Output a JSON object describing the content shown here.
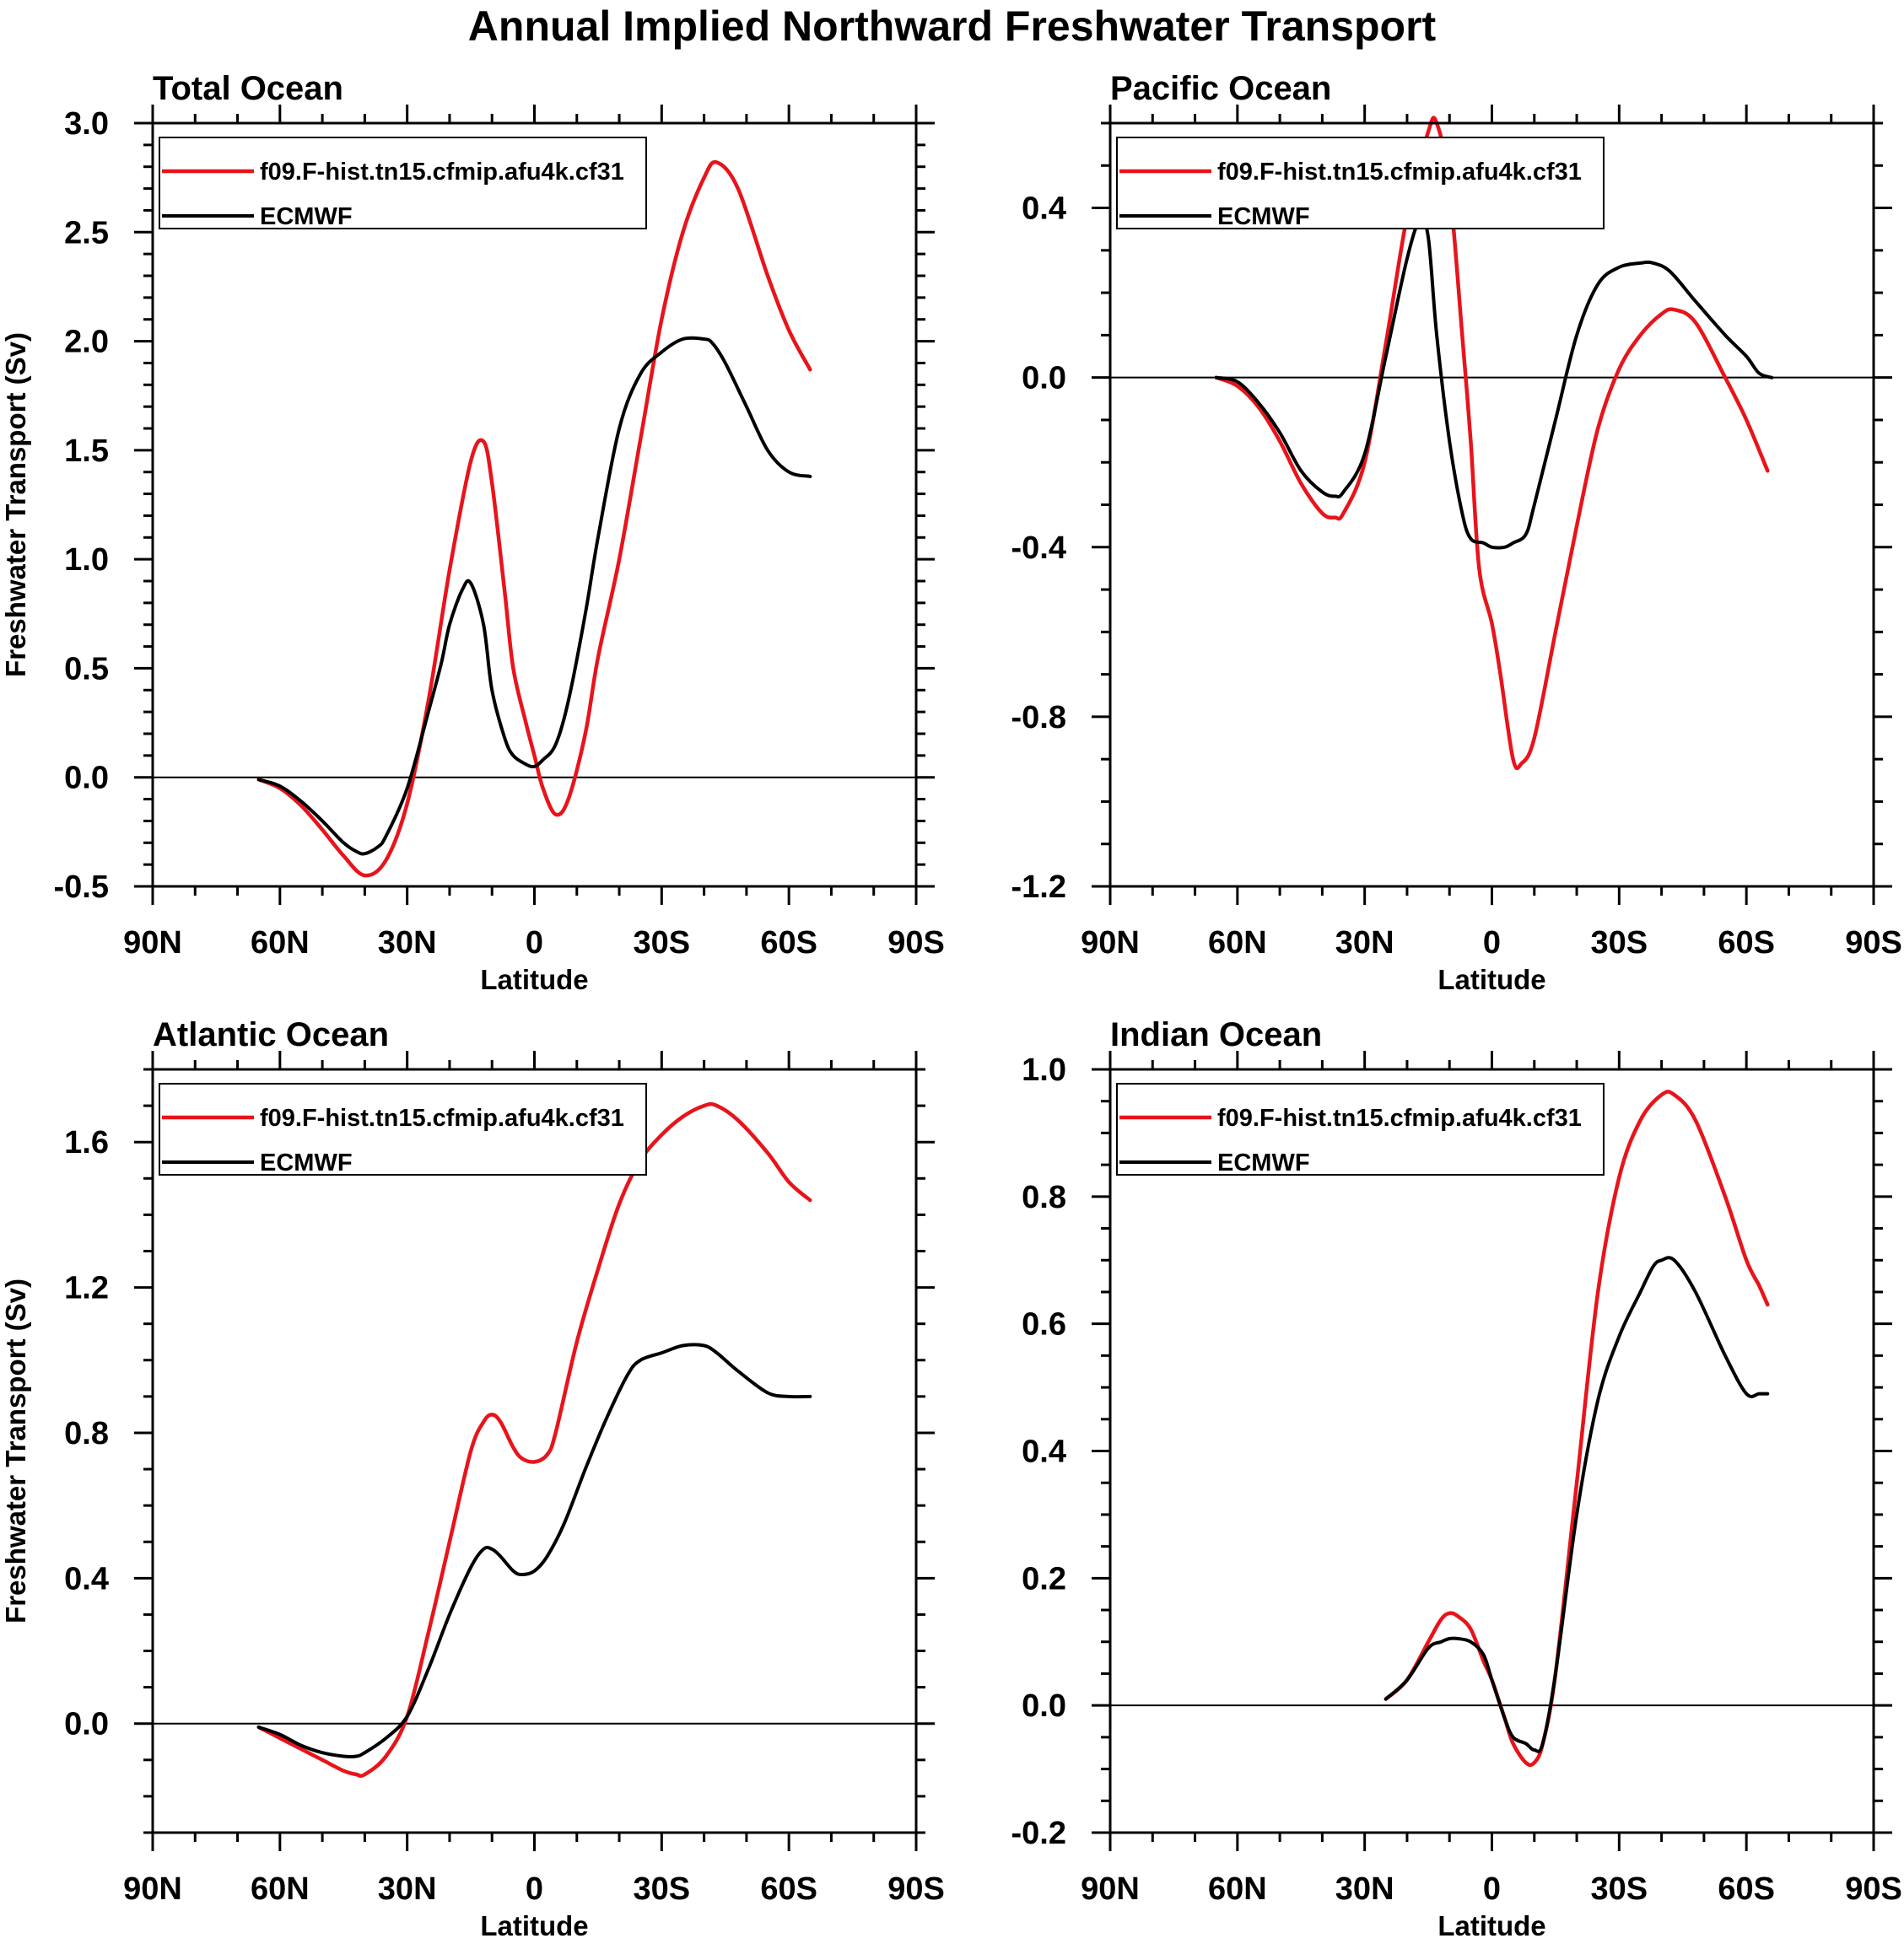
{
  "figure": {
    "title": "Annual Implied Northward Freshwater Transport"
  },
  "legend": {
    "model_label": "f09.F-hist.tn15.cfmip.afu4k.cf31",
    "obs_label": "ECMWF"
  },
  "colors": {
    "model": "#e8141b",
    "obs": "#000000",
    "axis": "#000000"
  },
  "chart_data": [
    {
      "type": "line",
      "title": "Total Ocean",
      "xlabel": "Latitude",
      "ylabel": "Freshwater Transport (Sv)",
      "xlim": [
        90,
        -90
      ],
      "ylim": [
        -0.5,
        3.0
      ],
      "x_ticks": [
        90,
        60,
        30,
        0,
        -30,
        -60,
        -90
      ],
      "x_tick_labels": [
        "90N",
        "60N",
        "30N",
        "0",
        "30S",
        "60S",
        "90S"
      ],
      "y_ticks": [
        -0.5,
        0.0,
        0.5,
        1.0,
        1.5,
        2.0,
        2.5,
        3.0
      ],
      "y_tick_labels": [
        "-0.5",
        "0.0",
        "0.5",
        "1.0",
        "1.5",
        "2.0",
        "2.5",
        "3.0"
      ],
      "y_minor_step": 0.1,
      "zero_line": true,
      "series": [
        {
          "name": "f09.F-hist.tn15.cfmip.afu4k.cf31",
          "x": [
            65,
            60,
            55,
            50,
            45,
            40,
            35,
            30,
            25,
            20,
            15,
            12,
            10,
            7,
            5,
            2,
            0,
            -2,
            -5,
            -8,
            -12,
            -15,
            -20,
            -25,
            -30,
            -35,
            -40,
            -43,
            -48,
            -55,
            -60,
            -65
          ],
          "y": [
            -0.01,
            -0.05,
            -0.13,
            -0.24,
            -0.36,
            -0.45,
            -0.38,
            -0.12,
            0.35,
            0.95,
            1.45,
            1.54,
            1.35,
            0.85,
            0.5,
            0.25,
            0.1,
            -0.05,
            -0.17,
            -0.1,
            0.2,
            0.55,
            1.0,
            1.55,
            2.1,
            2.5,
            2.75,
            2.82,
            2.7,
            2.3,
            2.05,
            1.87
          ]
        },
        {
          "name": "ECMWF",
          "x": [
            65,
            60,
            55,
            50,
            45,
            42,
            40,
            37,
            35,
            30,
            25,
            22,
            20,
            17,
            15,
            12,
            10,
            7,
            5,
            2,
            0,
            -2,
            -5,
            -8,
            -12,
            -15,
            -20,
            -25,
            -30,
            -35,
            -40,
            -42,
            -45,
            -50,
            -55,
            -60,
            -65
          ],
          "y": [
            -0.01,
            -0.04,
            -0.11,
            -0.2,
            -0.3,
            -0.34,
            -0.35,
            -0.32,
            -0.27,
            -0.05,
            0.3,
            0.52,
            0.7,
            0.86,
            0.89,
            0.7,
            0.4,
            0.18,
            0.1,
            0.06,
            0.05,
            0.08,
            0.15,
            0.35,
            0.75,
            1.1,
            1.6,
            1.85,
            1.95,
            2.01,
            2.01,
            1.99,
            1.9,
            1.7,
            1.5,
            1.4,
            1.38
          ]
        }
      ]
    },
    {
      "type": "line",
      "title": "Pacific Ocean",
      "xlabel": "Latitude",
      "ylabel": "",
      "xlim": [
        90,
        -90
      ],
      "ylim": [
        -1.2,
        0.6
      ],
      "x_ticks": [
        90,
        60,
        30,
        0,
        -30,
        -60,
        -90
      ],
      "x_tick_labels": [
        "90N",
        "60N",
        "30N",
        "0",
        "30S",
        "60S",
        "90S"
      ],
      "y_ticks": [
        -1.2,
        -0.8,
        -0.4,
        0.0,
        0.4
      ],
      "y_tick_labels": [
        "-1.2",
        "-0.8",
        "-0.4",
        "0.0",
        "0.4"
      ],
      "y_minor_step": 0.1,
      "zero_line": true,
      "series": [
        {
          "name": "f09.F-hist.tn15.cfmip.afu4k.cf31",
          "x": [
            65,
            60,
            55,
            50,
            45,
            40,
            37,
            35,
            30,
            25,
            20,
            15,
            13,
            10,
            7,
            5,
            3,
            0,
            -2,
            -5,
            -7,
            -10,
            -15,
            -20,
            -25,
            -30,
            -35,
            -40,
            -43,
            -48,
            -55,
            -60,
            -65
          ],
          "y": [
            -0.0,
            -0.02,
            -0.07,
            -0.15,
            -0.25,
            -0.32,
            -0.33,
            -0.32,
            -0.2,
            0.08,
            0.38,
            0.58,
            0.6,
            0.45,
            0.1,
            -0.15,
            -0.45,
            -0.58,
            -0.7,
            -0.9,
            -0.91,
            -0.85,
            -0.6,
            -0.35,
            -0.12,
            0.02,
            0.1,
            0.15,
            0.16,
            0.13,
            0.0,
            -0.1,
            -0.22
          ]
        },
        {
          "name": "ECMWF",
          "x": [
            65,
            60,
            55,
            50,
            45,
            40,
            37,
            35,
            30,
            25,
            20,
            17,
            15,
            13,
            10,
            7,
            5,
            2,
            0,
            -3,
            -5,
            -8,
            -10,
            -15,
            -20,
            -25,
            -30,
            -35,
            -38,
            -42,
            -48,
            -55,
            -60,
            -63,
            -66
          ],
          "y": [
            -0.0,
            -0.01,
            -0.06,
            -0.13,
            -0.22,
            -0.27,
            -0.28,
            -0.27,
            -0.18,
            0.05,
            0.28,
            0.37,
            0.33,
            0.1,
            -0.15,
            -0.32,
            -0.38,
            -0.39,
            -0.4,
            -0.4,
            -0.39,
            -0.37,
            -0.3,
            -0.1,
            0.1,
            0.22,
            0.26,
            0.27,
            0.27,
            0.25,
            0.18,
            0.1,
            0.05,
            0.01,
            0.0
          ]
        }
      ]
    },
    {
      "type": "line",
      "title": "Atlantic Ocean",
      "xlabel": "Latitude",
      "ylabel": "Freshwater Transport (Sv)",
      "xlim": [
        90,
        -90
      ],
      "ylim": [
        -0.3,
        1.8
      ],
      "x_ticks": [
        90,
        60,
        30,
        0,
        -30,
        -60,
        -90
      ],
      "x_tick_labels": [
        "90N",
        "60N",
        "30N",
        "0",
        "30S",
        "60S",
        "90S"
      ],
      "y_ticks": [
        0.0,
        0.4,
        0.8,
        1.2,
        1.6
      ],
      "y_tick_labels": [
        "0.0",
        "0.4",
        "0.8",
        "1.2",
        "1.6"
      ],
      "y_minor_step": 0.1,
      "zero_line": true,
      "series": [
        {
          "name": "f09.F-hist.tn15.cfmip.afu4k.cf31",
          "x": [
            65,
            60,
            55,
            50,
            45,
            42,
            40,
            35,
            30,
            25,
            20,
            15,
            12,
            10,
            8,
            5,
            3,
            0,
            -3,
            -5,
            -10,
            -15,
            -20,
            -25,
            -30,
            -35,
            -40,
            -43,
            -48,
            -55,
            -60,
            -65
          ],
          "y": [
            -0.01,
            -0.04,
            -0.07,
            -0.1,
            -0.13,
            -0.14,
            -0.14,
            -0.09,
            0.02,
            0.25,
            0.5,
            0.75,
            0.83,
            0.85,
            0.83,
            0.76,
            0.73,
            0.72,
            0.74,
            0.8,
            1.05,
            1.25,
            1.43,
            1.55,
            1.62,
            1.67,
            1.7,
            1.7,
            1.66,
            1.57,
            1.49,
            1.44
          ]
        },
        {
          "name": "ECMWF",
          "x": [
            65,
            60,
            55,
            50,
            45,
            42,
            40,
            35,
            30,
            25,
            20,
            15,
            12,
            10,
            8,
            5,
            3,
            0,
            -3,
            -7,
            -12,
            -17,
            -22,
            -25,
            -30,
            -35,
            -40,
            -43,
            -48,
            -55,
            -60,
            -65
          ],
          "y": [
            -0.01,
            -0.03,
            -0.06,
            -0.08,
            -0.09,
            -0.09,
            -0.08,
            -0.04,
            0.02,
            0.15,
            0.3,
            0.43,
            0.48,
            0.48,
            0.46,
            0.42,
            0.41,
            0.42,
            0.46,
            0.55,
            0.7,
            0.84,
            0.96,
            1.0,
            1.02,
            1.04,
            1.04,
            1.02,
            0.97,
            0.91,
            0.9,
            0.9
          ]
        }
      ]
    },
    {
      "type": "line",
      "title": "Indian Ocean",
      "xlabel": "Latitude",
      "ylabel": "",
      "xlim": [
        90,
        -90
      ],
      "ylim": [
        -0.2,
        1.0
      ],
      "x_ticks": [
        90,
        60,
        30,
        0,
        -30,
        -60,
        -90
      ],
      "x_tick_labels": [
        "90N",
        "60N",
        "30N",
        "0",
        "30S",
        "60S",
        "90S"
      ],
      "y_ticks": [
        -0.2,
        0.0,
        0.2,
        0.4,
        0.6,
        0.8,
        1.0
      ],
      "y_tick_labels": [
        "-0.2",
        "0.0",
        "0.2",
        "0.4",
        "0.6",
        "0.8",
        "1.0"
      ],
      "y_minor_step": 0.05,
      "zero_line": true,
      "series": [
        {
          "name": "f09.F-hist.tn15.cfmip.afu4k.cf31",
          "x": [
            25,
            20,
            15,
            12,
            10,
            8,
            5,
            2,
            0,
            -3,
            -5,
            -8,
            -10,
            -12,
            -15,
            -20,
            -25,
            -30,
            -35,
            -40,
            -43,
            -48,
            -55,
            -60,
            -63,
            -65
          ],
          "y": [
            0.01,
            0.04,
            0.1,
            0.135,
            0.145,
            0.14,
            0.12,
            0.07,
            0.04,
            -0.02,
            -0.06,
            -0.09,
            -0.09,
            -0.06,
            0.05,
            0.35,
            0.65,
            0.83,
            0.92,
            0.96,
            0.96,
            0.92,
            0.8,
            0.7,
            0.66,
            0.63
          ]
        },
        {
          "name": "ECMWF",
          "x": [
            25,
            20,
            15,
            12,
            10,
            8,
            5,
            2,
            0,
            -3,
            -5,
            -8,
            -10,
            -12,
            -15,
            -20,
            -25,
            -30,
            -35,
            -38,
            -40,
            -43,
            -48,
            -55,
            -60,
            -63,
            -65
          ],
          "y": [
            0.01,
            0.04,
            0.09,
            0.1,
            0.105,
            0.105,
            0.1,
            0.08,
            0.04,
            -0.02,
            -0.05,
            -0.06,
            -0.07,
            -0.06,
            0.05,
            0.3,
            0.48,
            0.58,
            0.65,
            0.69,
            0.7,
            0.7,
            0.65,
            0.55,
            0.49,
            0.49,
            0.49
          ]
        }
      ]
    }
  ]
}
